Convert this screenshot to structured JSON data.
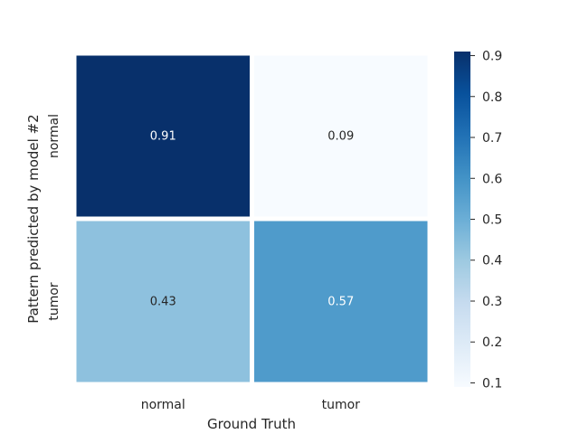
{
  "chart_data": {
    "type": "heatmap",
    "xlabel": "Ground Truth",
    "ylabel": "Pattern predicted by model #2",
    "x_categories": [
      "normal",
      "tumor"
    ],
    "y_categories": [
      "normal",
      "tumor"
    ],
    "values": [
      [
        0.91,
        0.09
      ],
      [
        0.43,
        0.57
      ]
    ],
    "value_labels": [
      [
        "0.91",
        "0.09"
      ],
      [
        "0.43",
        "0.57"
      ]
    ],
    "colormap": "Blues",
    "color_range": [
      0.09,
      0.91
    ],
    "colorbar_ticks": [
      "0.1",
      "0.2",
      "0.3",
      "0.4",
      "0.5",
      "0.6",
      "0.7",
      "0.8",
      "0.9"
    ],
    "grid": false
  }
}
